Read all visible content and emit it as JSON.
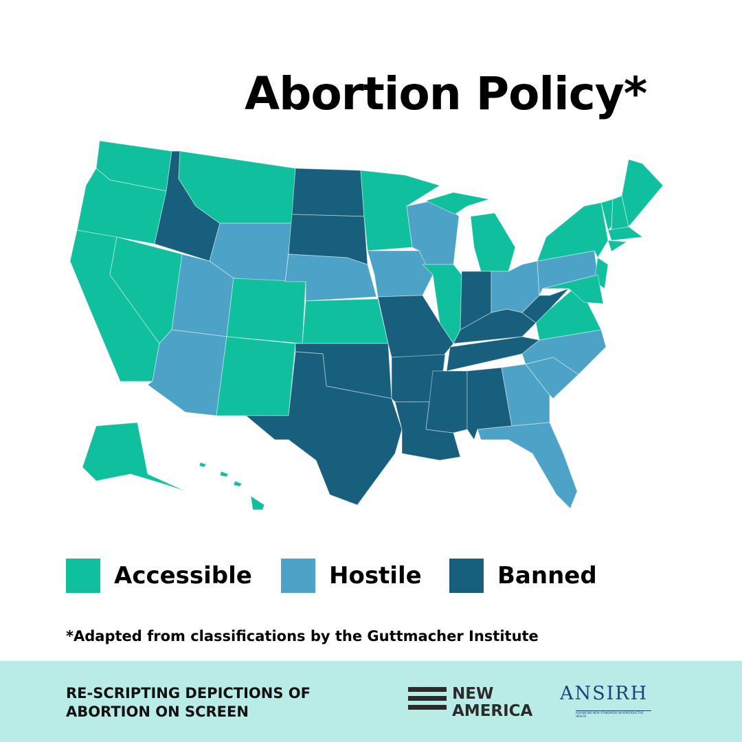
{
  "title": "Abortion Policy*",
  "legend": [
    {
      "label": "Accessible",
      "color": "#0fbf9e"
    },
    {
      "label": "Hostile",
      "color": "#4ca2c7"
    },
    {
      "label": "Banned",
      "color": "#175f7c"
    }
  ],
  "footnote": "*Adapted from classifications by the Guttmacher Institute",
  "footer": {
    "text": "RE-SCRIPTING DEPICTIONS OF ABORTION ON SCREEN",
    "logo1": [
      "NEW",
      "AMERICA"
    ],
    "logo2": "ANSIRH",
    "logo2_tagline": "ADVANCING NEW STANDARDS IN REPRODUCTIVE HEALTH",
    "background": "#b9ece6"
  }
}
